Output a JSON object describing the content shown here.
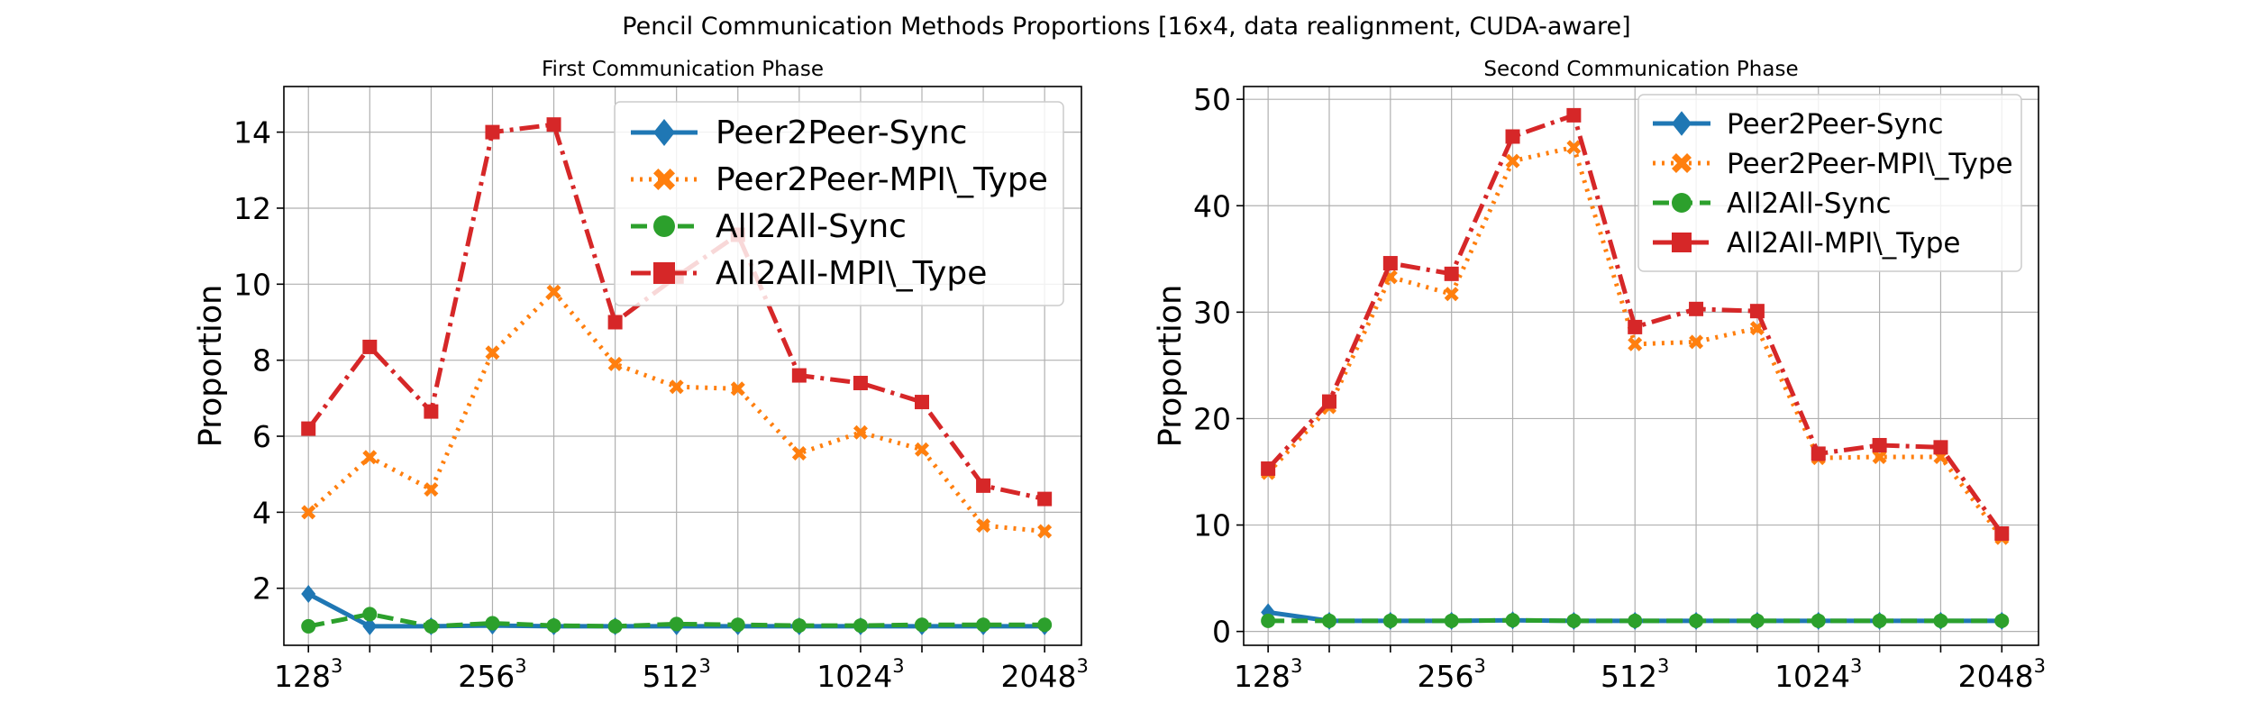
{
  "figure": {
    "title": "Pencil Communication Methods Proportions [16x4, data realignment, CUDA-aware]"
  },
  "colors": {
    "Peer2Peer-Sync": "#1f77b4",
    "Peer2Peer-MPI\\_Type": "#ff7f0e",
    "All2All-Sync": "#2ca02c",
    "All2All-MPI\\_Type": "#d62728"
  },
  "chart_data": [
    {
      "type": "line",
      "title": "First Communication Phase",
      "ylabel": "Proportion",
      "xlabel": "",
      "x": [
        1,
        2,
        3,
        4,
        5,
        6,
        7,
        8,
        9,
        10,
        11,
        12,
        13
      ],
      "xticks": [
        {
          "x": 1,
          "base": "128",
          "exp": "3"
        },
        {
          "x": 4,
          "base": "256",
          "exp": "3"
        },
        {
          "x": 7,
          "base": "512",
          "exp": "3"
        },
        {
          "x": 10,
          "base": "1024",
          "exp": "3"
        },
        {
          "x": 13,
          "base": "2048",
          "exp": "3"
        }
      ],
      "xlim": [
        0.6,
        13.6
      ],
      "ylim": [
        0.5,
        15.2
      ],
      "yticks": [
        2,
        4,
        6,
        8,
        10,
        12,
        14
      ],
      "grid": true,
      "legend": "top-right",
      "series": [
        {
          "name": "Peer2Peer-Sync",
          "values": [
            1.85,
            1.0,
            1.0,
            1.02,
            1.0,
            1.0,
            1.0,
            1.0,
            1.0,
            1.0,
            1.0,
            1.0,
            1.0
          ]
        },
        {
          "name": "Peer2Peer-MPI\\_Type",
          "values": [
            4.0,
            5.45,
            4.6,
            8.2,
            9.8,
            7.9,
            7.3,
            7.25,
            5.55,
            6.1,
            5.65,
            3.65,
            3.5
          ]
        },
        {
          "name": "All2All-Sync",
          "values": [
            1.0,
            1.32,
            1.0,
            1.08,
            1.02,
            1.0,
            1.06,
            1.04,
            1.02,
            1.02,
            1.04,
            1.04,
            1.04
          ]
        },
        {
          "name": "All2All-MPI\\_Type",
          "values": [
            6.2,
            8.35,
            6.65,
            14.0,
            14.2,
            9.0,
            10.2,
            11.3,
            7.6,
            7.4,
            6.9,
            4.7,
            4.35
          ]
        }
      ]
    },
    {
      "type": "line",
      "title": "Second Communication Phase",
      "ylabel": "Proportion",
      "xlabel": "",
      "x": [
        1,
        2,
        3,
        4,
        5,
        6,
        7,
        8,
        9,
        10,
        11,
        12,
        13
      ],
      "xticks": [
        {
          "x": 1,
          "base": "128",
          "exp": "3"
        },
        {
          "x": 4,
          "base": "256",
          "exp": "3"
        },
        {
          "x": 7,
          "base": "512",
          "exp": "3"
        },
        {
          "x": 10,
          "base": "1024",
          "exp": "3"
        },
        {
          "x": 13,
          "base": "2048",
          "exp": "3"
        }
      ],
      "xlim": [
        0.6,
        13.6
      ],
      "ylim": [
        -1.3,
        51.2
      ],
      "yticks": [
        0,
        10,
        20,
        30,
        40,
        50
      ],
      "grid": true,
      "legend": "top-right",
      "series": [
        {
          "name": "Peer2Peer-Sync",
          "values": [
            1.8,
            1.0,
            1.0,
            1.0,
            1.05,
            1.0,
            1.0,
            1.0,
            1.0,
            1.0,
            1.0,
            1.0,
            1.0
          ]
        },
        {
          "name": "Peer2Peer-MPI\\_Type",
          "values": [
            14.9,
            21.1,
            33.3,
            31.7,
            44.2,
            45.5,
            27.0,
            27.2,
            28.5,
            16.3,
            16.4,
            16.4,
            8.8
          ]
        },
        {
          "name": "All2All-Sync",
          "values": [
            1.0,
            1.0,
            1.0,
            1.0,
            1.05,
            1.0,
            1.0,
            1.0,
            1.0,
            1.0,
            1.0,
            1.0,
            1.0
          ]
        },
        {
          "name": "All2All-MPI\\_Type",
          "values": [
            15.3,
            21.6,
            34.6,
            33.6,
            46.5,
            48.5,
            28.6,
            30.3,
            30.1,
            16.7,
            17.5,
            17.3,
            9.2
          ]
        }
      ]
    }
  ]
}
